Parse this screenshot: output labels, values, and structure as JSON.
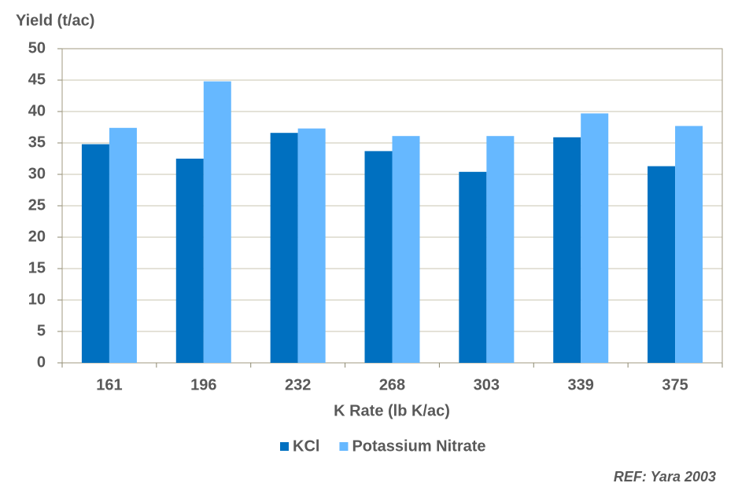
{
  "chart_data": {
    "type": "bar",
    "y_label": "Yield (t/ac)",
    "x_label": "K Rate (lb K/ac)",
    "annotation": "REF: Yara 2003",
    "categories": [
      "161",
      "196",
      "232",
      "268",
      "303",
      "339",
      "375"
    ],
    "series": [
      {
        "name": "KCl",
        "color": "#0070c0",
        "values": [
          34.8,
          32.5,
          36.6,
          33.7,
          30.4,
          35.9,
          31.3
        ]
      },
      {
        "name": "Potassium Nitrate",
        "color": "#66b8ff",
        "values": [
          37.4,
          44.8,
          37.3,
          36.1,
          36.1,
          39.7,
          37.7
        ]
      }
    ],
    "ylim": [
      0,
      50
    ],
    "yticks": [
      0,
      5,
      10,
      15,
      20,
      25,
      30,
      35,
      40,
      45,
      50
    ],
    "grid": true,
    "legend": "bottom"
  }
}
